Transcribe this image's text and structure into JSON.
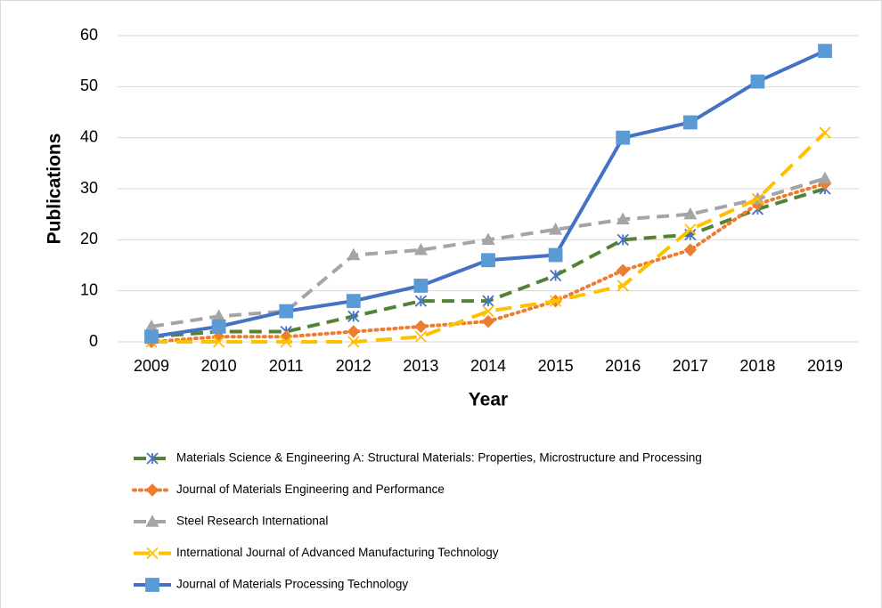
{
  "chart_data": {
    "type": "line",
    "ylabel": "Publications",
    "xlabel": "Year",
    "categories": [
      "2009",
      "2010",
      "2011",
      "2012",
      "2013",
      "2014",
      "2015",
      "2016",
      "2017",
      "2018",
      "2019"
    ],
    "ylim": [
      0,
      60
    ],
    "yticks": [
      0,
      10,
      20,
      30,
      40,
      50,
      60
    ],
    "grid": true,
    "legend": "bottom",
    "series": [
      {
        "name": "Materials Science & Engineering A: Structural Materials: Properties, Microstructure and Processing",
        "color": "#548235",
        "marker_color": "#4472c4",
        "dash": "dashed",
        "marker": "star",
        "values": [
          1,
          2,
          2,
          5,
          8,
          8,
          13,
          20,
          21,
          26,
          30
        ]
      },
      {
        "name": "Journal of Materials Engineering and Performance",
        "color": "#ed7d31",
        "marker_color": "#ed7d31",
        "dash": "dotted",
        "marker": "diamond",
        "values": [
          0,
          1,
          1,
          2,
          3,
          4,
          8,
          14,
          18,
          27,
          31
        ]
      },
      {
        "name": "Steel Research International",
        "color": "#a5a5a5",
        "marker_color": "#a5a5a5",
        "dash": "dashed",
        "marker": "triangle",
        "values": [
          3,
          5,
          6,
          17,
          18,
          20,
          22,
          24,
          25,
          28,
          32
        ]
      },
      {
        "name": "International Journal of Advanced Manufacturing Technology",
        "color": "#ffc000",
        "marker_color": "#ffc000",
        "dash": "longdash",
        "marker": "x",
        "values": [
          0,
          0,
          0,
          0,
          1,
          6,
          8,
          11,
          22,
          28,
          41
        ]
      },
      {
        "name": "Journal of Materials Processing Technology",
        "color": "#4472c4",
        "marker_color": "#5b9bd5",
        "dash": "solid",
        "marker": "square",
        "values": [
          1,
          3,
          6,
          8,
          11,
          16,
          17,
          40,
          43,
          51,
          57
        ]
      }
    ]
  }
}
